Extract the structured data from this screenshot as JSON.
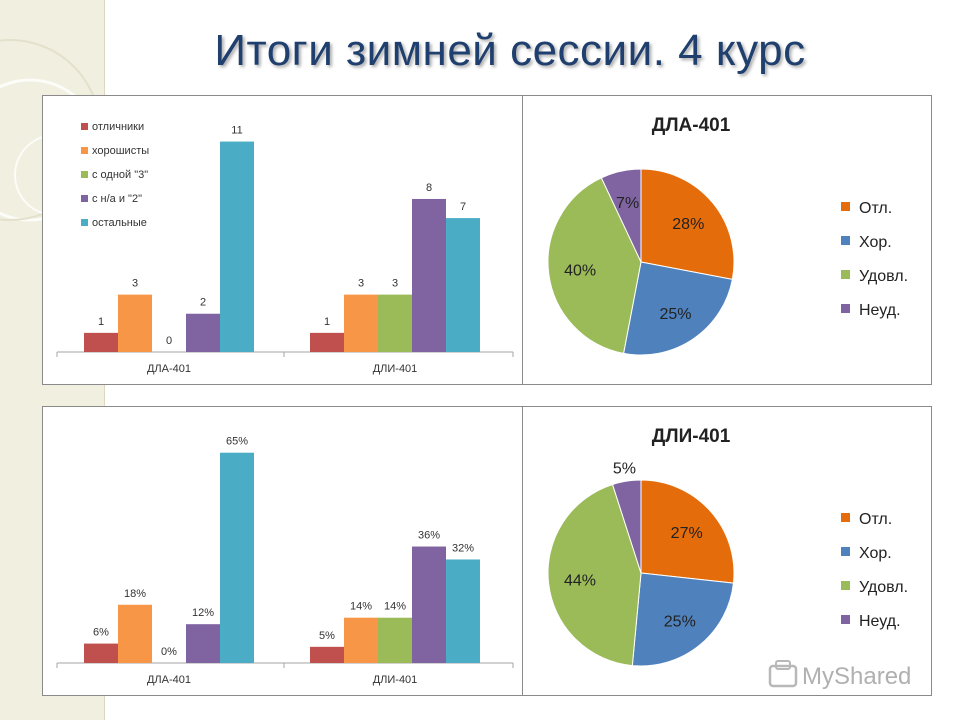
{
  "title": "Итоги зимней сессии. 4 курс",
  "watermark": "MyShared",
  "colors": {
    "otl": "#c0504d",
    "hor": "#f79646",
    "odna3": "#9bbb59",
    "na2": "#8064a2",
    "ost": "#4bacc6",
    "pie_otl": "#e46c0a",
    "pie_hor": "#4f81bd",
    "pie_udovl": "#9bbb59",
    "pie_neud": "#8064a2",
    "title": "#1f3f6e"
  },
  "chart_data": [
    {
      "type": "bar",
      "categories": [
        "ДЛА-401",
        "ДЛИ-401"
      ],
      "series": [
        {
          "name": "отличники",
          "values": [
            1,
            1
          ],
          "labels": [
            "1",
            "1"
          ]
        },
        {
          "name": "хорошисты",
          "values": [
            3,
            3
          ],
          "labels": [
            "3",
            "3"
          ]
        },
        {
          "name": "с одной \"3\"",
          "values": [
            0,
            3
          ],
          "labels": [
            "0",
            "3"
          ]
        },
        {
          "name": "с н/а и \"2\"",
          "values": [
            2,
            8
          ],
          "labels": [
            "2",
            "8"
          ]
        },
        {
          "name": "остальные",
          "values": [
            11,
            7
          ],
          "labels": [
            "11",
            "7"
          ]
        }
      ],
      "ylim": [
        0,
        11.5
      ],
      "legend": "top-left",
      "grid": false
    },
    {
      "type": "pie",
      "title": "ДЛА-401",
      "slices": [
        {
          "name": "Отл.",
          "value": 28,
          "label": "28%"
        },
        {
          "name": "Хор.",
          "value": 25,
          "label": "25%"
        },
        {
          "name": "Удовл.",
          "value": 40,
          "label": "40%"
        },
        {
          "name": "Неуд.",
          "value": 7,
          "label": "7%"
        }
      ],
      "legend": "right"
    },
    {
      "type": "bar",
      "categories": [
        "ДЛА-401",
        "ДЛИ-401"
      ],
      "series": [
        {
          "name": "отличники",
          "values": [
            6,
            5
          ],
          "labels": [
            "6%",
            "5%"
          ]
        },
        {
          "name": "хорошисты",
          "values": [
            18,
            14
          ],
          "labels": [
            "18%",
            "14%"
          ]
        },
        {
          "name": "с одной \"3\"",
          "values": [
            0,
            14
          ],
          "labels": [
            "0%",
            "14%"
          ]
        },
        {
          "name": "с н/а и \"2\"",
          "values": [
            12,
            36
          ],
          "labels": [
            "12%",
            "36%"
          ]
        },
        {
          "name": "остальные",
          "values": [
            65,
            32
          ],
          "labels": [
            "65%",
            "32%"
          ]
        }
      ],
      "ylim": [
        0,
        68
      ],
      "legend": "none",
      "grid": false
    },
    {
      "type": "pie",
      "title": "ДЛИ-401",
      "slices": [
        {
          "name": "Отл.",
          "value": 27,
          "label": "27%"
        },
        {
          "name": "Хор.",
          "value": 25,
          "label": "25%"
        },
        {
          "name": "Удовл.",
          "value": 44,
          "label": "44%"
        },
        {
          "name": "Неуд.",
          "value": 5,
          "label": "5%"
        }
      ],
      "legend": "right"
    }
  ]
}
